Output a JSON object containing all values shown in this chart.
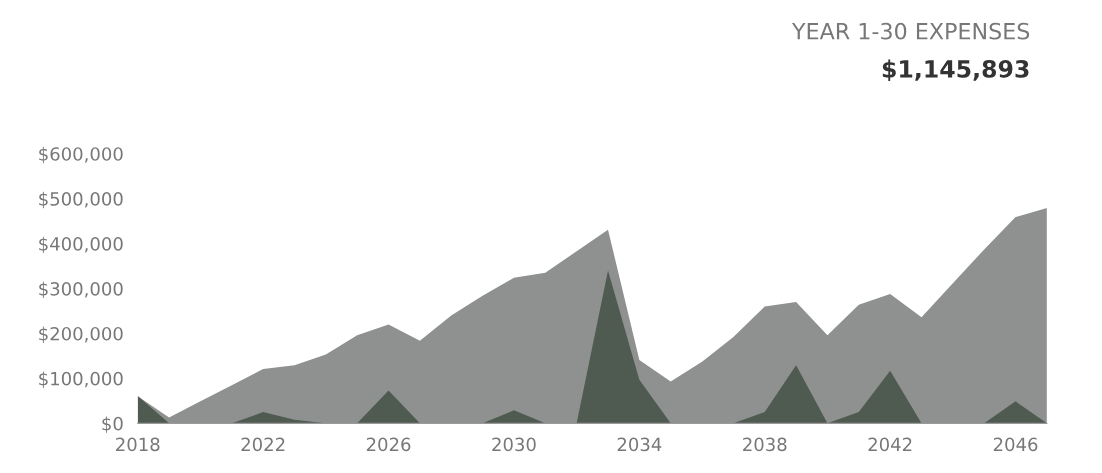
{
  "chart_data": {
    "type": "area",
    "title": "YEAR 1-30 EXPENSES",
    "subtitle": "$1,145,893",
    "x": [
      2018,
      2019,
      2020,
      2021,
      2022,
      2023,
      2024,
      2025,
      2026,
      2027,
      2028,
      2029,
      2030,
      2031,
      2032,
      2033,
      2034,
      2035,
      2036,
      2037,
      2038,
      2039,
      2040,
      2041,
      2042,
      2043,
      2044,
      2045,
      2046,
      2047
    ],
    "series": [
      {
        "color": "#8e918f",
        "values": [
          60000,
          13000,
          49000,
          85000,
          121000,
          129000,
          153000,
          196000,
          220000,
          184000,
          240000,
          284000,
          324000,
          335000,
          383000,
          431000,
          141000,
          93000,
          137000,
          192000,
          260000,
          270000,
          196000,
          264000,
          288000,
          236000,
          312000,
          387000,
          459000,
          479000
        ]
      },
      {
        "color": "#4f5a51",
        "values": [
          61000,
          0,
          0,
          0,
          25000,
          8000,
          0,
          0,
          73000,
          0,
          0,
          0,
          29000,
          0,
          0,
          340000,
          97000,
          0,
          0,
          0,
          25000,
          129000,
          0,
          25000,
          117000,
          0,
          0,
          0,
          49000,
          0
        ]
      }
    ],
    "xlim": [
      2018,
      2047
    ],
    "xticks": [
      2018,
      2022,
      2026,
      2030,
      2034,
      2038,
      2042,
      2046
    ],
    "ylim": [
      0,
      600000
    ],
    "yticks": [
      {
        "value": 0,
        "label": "$0"
      },
      {
        "value": 100000,
        "label": "$100,000"
      },
      {
        "value": 200000,
        "label": "$200,000"
      },
      {
        "value": 300000,
        "label": "$300,000"
      },
      {
        "value": 400000,
        "label": "$400,000"
      },
      {
        "value": 500000,
        "label": "$500,000"
      },
      {
        "value": 600000,
        "label": "$600,000"
      }
    ],
    "grid": false
  }
}
